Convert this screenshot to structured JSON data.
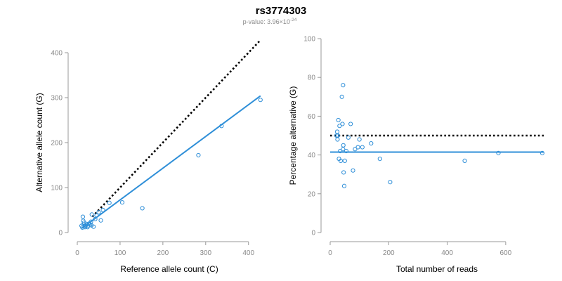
{
  "figure": {
    "title": "rs3774303",
    "subtitle_prefix": "p-value: 3.96×10",
    "subtitle_exponent": "-24"
  },
  "colors": {
    "points": "#2f8fd8",
    "fit_line": "#2f8fd8",
    "reference_line": "#000000",
    "axis": "#999999"
  },
  "chart_data": [
    {
      "type": "scatter",
      "xlabel": "Reference allele count (C)",
      "ylabel": "Alternative allele count (G)",
      "xlim": [
        0,
        430
      ],
      "ylim": [
        0,
        400
      ],
      "x_ticks": [
        0,
        100,
        200,
        300,
        400
      ],
      "y_ticks": [
        0,
        100,
        200,
        300,
        400
      ],
      "grid": false,
      "points": [
        [
          10,
          15
        ],
        [
          12,
          11
        ],
        [
          13,
          35
        ],
        [
          14,
          26
        ],
        [
          15,
          18
        ],
        [
          16,
          22
        ],
        [
          17,
          14
        ],
        [
          18,
          12
        ],
        [
          20,
          16
        ],
        [
          22,
          19
        ],
        [
          24,
          12
        ],
        [
          25,
          15
        ],
        [
          28,
          20
        ],
        [
          30,
          18
        ],
        [
          32,
          24
        ],
        [
          33,
          16
        ],
        [
          34,
          40
        ],
        [
          38,
          13
        ],
        [
          42,
          30
        ],
        [
          45,
          38
        ],
        [
          50,
          45
        ],
        [
          55,
          27
        ],
        [
          60,
          50
        ],
        [
          75,
          66
        ],
        [
          105,
          67
        ],
        [
          152,
          54
        ],
        [
          283,
          172
        ],
        [
          337,
          237
        ],
        [
          428,
          295
        ]
      ],
      "fit_line": [
        [
          10,
          9
        ],
        [
          428,
          304
        ]
      ],
      "reference_line": [
        [
          35,
          35
        ],
        [
          428,
          428
        ]
      ]
    },
    {
      "type": "scatter",
      "xlabel": "Total number of reads",
      "ylabel": "Percentage alternative (G)",
      "xlim": [
        0,
        730
      ],
      "ylim": [
        0,
        100
      ],
      "x_ticks": [
        0,
        200,
        400,
        600
      ],
      "y_ticks": [
        0,
        20,
        40,
        60,
        80,
        100
      ],
      "grid": false,
      "points": [
        [
          22,
          50
        ],
        [
          24,
          52
        ],
        [
          25,
          48
        ],
        [
          26,
          50
        ],
        [
          28,
          58
        ],
        [
          30,
          38
        ],
        [
          32,
          55
        ],
        [
          34,
          42
        ],
        [
          36,
          37
        ],
        [
          40,
          70
        ],
        [
          42,
          56
        ],
        [
          44,
          76
        ],
        [
          44,
          43
        ],
        [
          45,
          45
        ],
        [
          46,
          31
        ],
        [
          48,
          24
        ],
        [
          50,
          37
        ],
        [
          55,
          42
        ],
        [
          62,
          49
        ],
        [
          70,
          56
        ],
        [
          78,
          32
        ],
        [
          85,
          43
        ],
        [
          95,
          44
        ],
        [
          100,
          48
        ],
        [
          110,
          44
        ],
        [
          140,
          46
        ],
        [
          170,
          38
        ],
        [
          205,
          26
        ],
        [
          460,
          37
        ],
        [
          575,
          41
        ],
        [
          725,
          41
        ]
      ],
      "fit_line": [
        [
          0,
          41.5
        ],
        [
          730,
          41.5
        ]
      ],
      "reference_line": [
        [
          0,
          50
        ],
        [
          730,
          50
        ]
      ]
    }
  ]
}
